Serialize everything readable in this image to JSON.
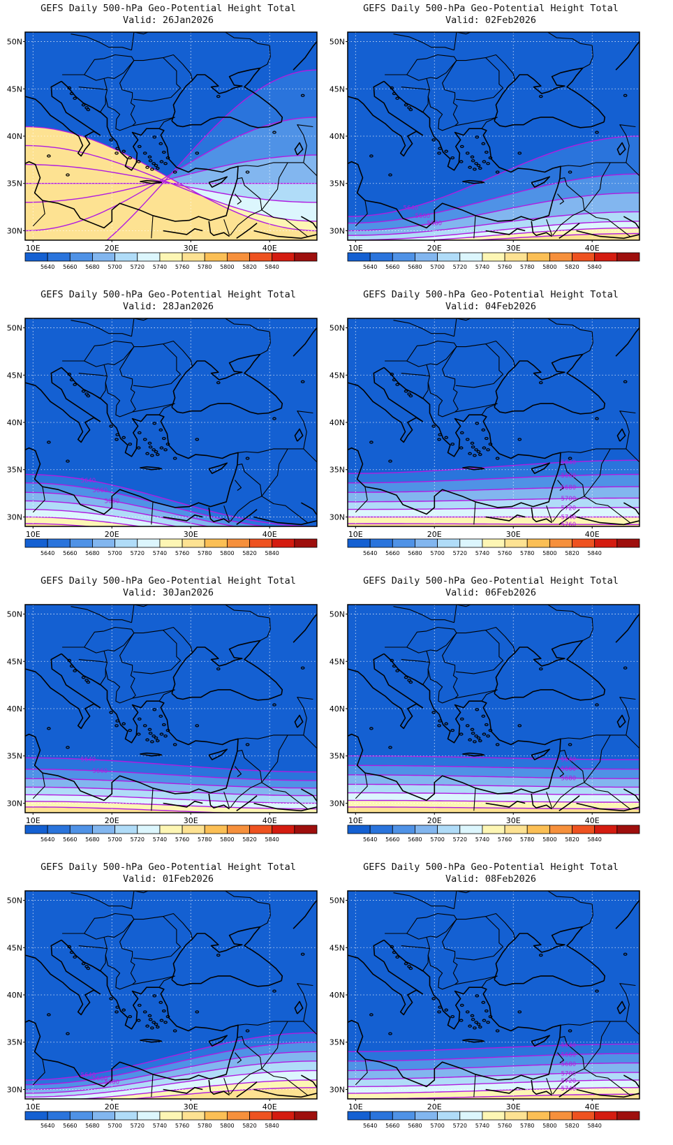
{
  "panels": [
    {
      "title": "GEFS Daily 500-hPa Geo-Potential Height Total",
      "valid": "Valid: 26Jan2026",
      "contours": [
        [
          5640,
          25,
          47
        ],
        [
          5660,
          30,
          42
        ],
        [
          5680,
          33,
          38
        ],
        [
          5700,
          35,
          35
        ],
        [
          5720,
          37,
          33
        ],
        [
          5740,
          39,
          31
        ],
        [
          5760,
          41,
          30
        ]
      ],
      "contour_labels": []
    },
    {
      "title": "GEFS Daily 500-hPa Geo-Potential Height Total",
      "valid": "Valid: 02Feb2026",
      "contours": [
        [
          5640,
          31.5,
          40
        ],
        [
          5660,
          30.8,
          36
        ],
        [
          5680,
          30,
          34
        ],
        [
          5700,
          29.5,
          32
        ],
        [
          5720,
          29,
          31
        ],
        [
          5740,
          28.7,
          30.3
        ],
        [
          5760,
          28.5,
          29.7
        ]
      ],
      "contour_labels": [
        "5640",
        "5660",
        "5680"
      ]
    },
    {
      "title": "GEFS Daily 500-hPa Geo-Potential Height Total",
      "valid": "Valid: 28Jan2026",
      "contours": [
        [
          5640,
          34.5,
          29
        ],
        [
          5660,
          33.6,
          28.6
        ],
        [
          5680,
          32.6,
          28.2
        ],
        [
          5700,
          31.7,
          27.8
        ],
        [
          5720,
          30.8,
          27.4
        ],
        [
          5740,
          30,
          27
        ],
        [
          5760,
          29.3,
          26.6
        ]
      ],
      "contour_labels": [
        "5640",
        "5660",
        "5680"
      ]
    },
    {
      "title": "GEFS Daily 500-hPa Geo-Potential Height Total",
      "valid": "Valid: 04Feb2026",
      "contours": [
        [
          5640,
          34.6,
          36
        ],
        [
          5660,
          33.6,
          34.5
        ],
        [
          5680,
          32.6,
          33.2
        ],
        [
          5700,
          31.6,
          32
        ],
        [
          5720,
          30.8,
          31
        ],
        [
          5740,
          30,
          30
        ],
        [
          5760,
          29.3,
          29.2
        ]
      ],
      "contour_labels": [
        "5640",
        "5660",
        "5680",
        "5700",
        "5720",
        "5740",
        "5760"
      ]
    },
    {
      "title": "GEFS Daily 500-hPa Geo-Potential Height Total",
      "valid": "Valid: 30Jan2026",
      "contours": [
        [
          5640,
          34.8,
          33.3
        ],
        [
          5660,
          33.6,
          32.4
        ],
        [
          5680,
          32.6,
          31.6
        ],
        [
          5700,
          31.7,
          30.8
        ],
        [
          5720,
          30.9,
          30
        ],
        [
          5740,
          30.2,
          29.4
        ],
        [
          5760,
          29.6,
          28.8
        ]
      ],
      "contour_labels": [
        "5640",
        "5660"
      ]
    },
    {
      "title": "GEFS Daily 500-hPa Geo-Potential Height Total",
      "valid": "Valid: 06Feb2026",
      "contours": [
        [
          5640,
          35,
          34.6
        ],
        [
          5660,
          34,
          33.6
        ],
        [
          5680,
          33,
          32.6
        ],
        [
          5700,
          32,
          31.7
        ],
        [
          5720,
          31.1,
          30.9
        ],
        [
          5740,
          30.3,
          30.1
        ],
        [
          5760,
          29.6,
          29.4
        ]
      ],
      "contour_labels": [
        "5640",
        "5660",
        "5680"
      ]
    },
    {
      "title": "GEFS Daily 500-hPa Geo-Potential Height Total",
      "valid": "Valid: 01Feb2026",
      "contours": [
        [
          5640,
          31,
          36
        ],
        [
          5660,
          30.5,
          35
        ],
        [
          5680,
          30,
          34
        ],
        [
          5700,
          29.6,
          33
        ],
        [
          5720,
          29.2,
          32
        ],
        [
          5740,
          28.8,
          31
        ],
        [
          5760,
          28.5,
          30.2
        ]
      ],
      "contour_labels": [
        "5640",
        "5660",
        "5680"
      ]
    },
    {
      "title": "GEFS Daily 500-hPa Geo-Potential Height Total",
      "valid": "Valid: 08Feb2026",
      "contours": [
        [
          5640,
          34,
          34.8
        ],
        [
          5660,
          33,
          33.8
        ],
        [
          5680,
          32,
          32.8
        ],
        [
          5700,
          31.1,
          31.8
        ],
        [
          5720,
          30.3,
          31
        ],
        [
          5740,
          29.6,
          30.2
        ],
        [
          5760,
          29,
          29.5
        ]
      ],
      "contour_labels": [
        "5640",
        "5660",
        "5680",
        "5700",
        "5720",
        "5740"
      ]
    }
  ],
  "map_extent": {
    "lon": [
      9,
      46
    ],
    "lat": [
      29,
      51
    ]
  },
  "lat_ticks": [
    "50N",
    "45N",
    "40N",
    "35N",
    "30N"
  ],
  "lon_ticks": [
    "10E",
    "20E",
    "30E",
    "40E"
  ],
  "colorbar": {
    "labels": [
      "5640",
      "5660",
      "5680",
      "5700",
      "5720",
      "5740",
      "5760",
      "5780",
      "5800",
      "5820",
      "5840"
    ],
    "colors": [
      "#1460d2",
      "#2a74dc",
      "#4f92e6",
      "#82b6ef",
      "#b0dcf8",
      "#dcf6fd",
      "#fdf6b4",
      "#fde292",
      "#fbbf55",
      "#f6903c",
      "#ee5220",
      "#d41c10",
      "#9e0f0d"
    ]
  },
  "contour_color": "#b01ce0"
}
